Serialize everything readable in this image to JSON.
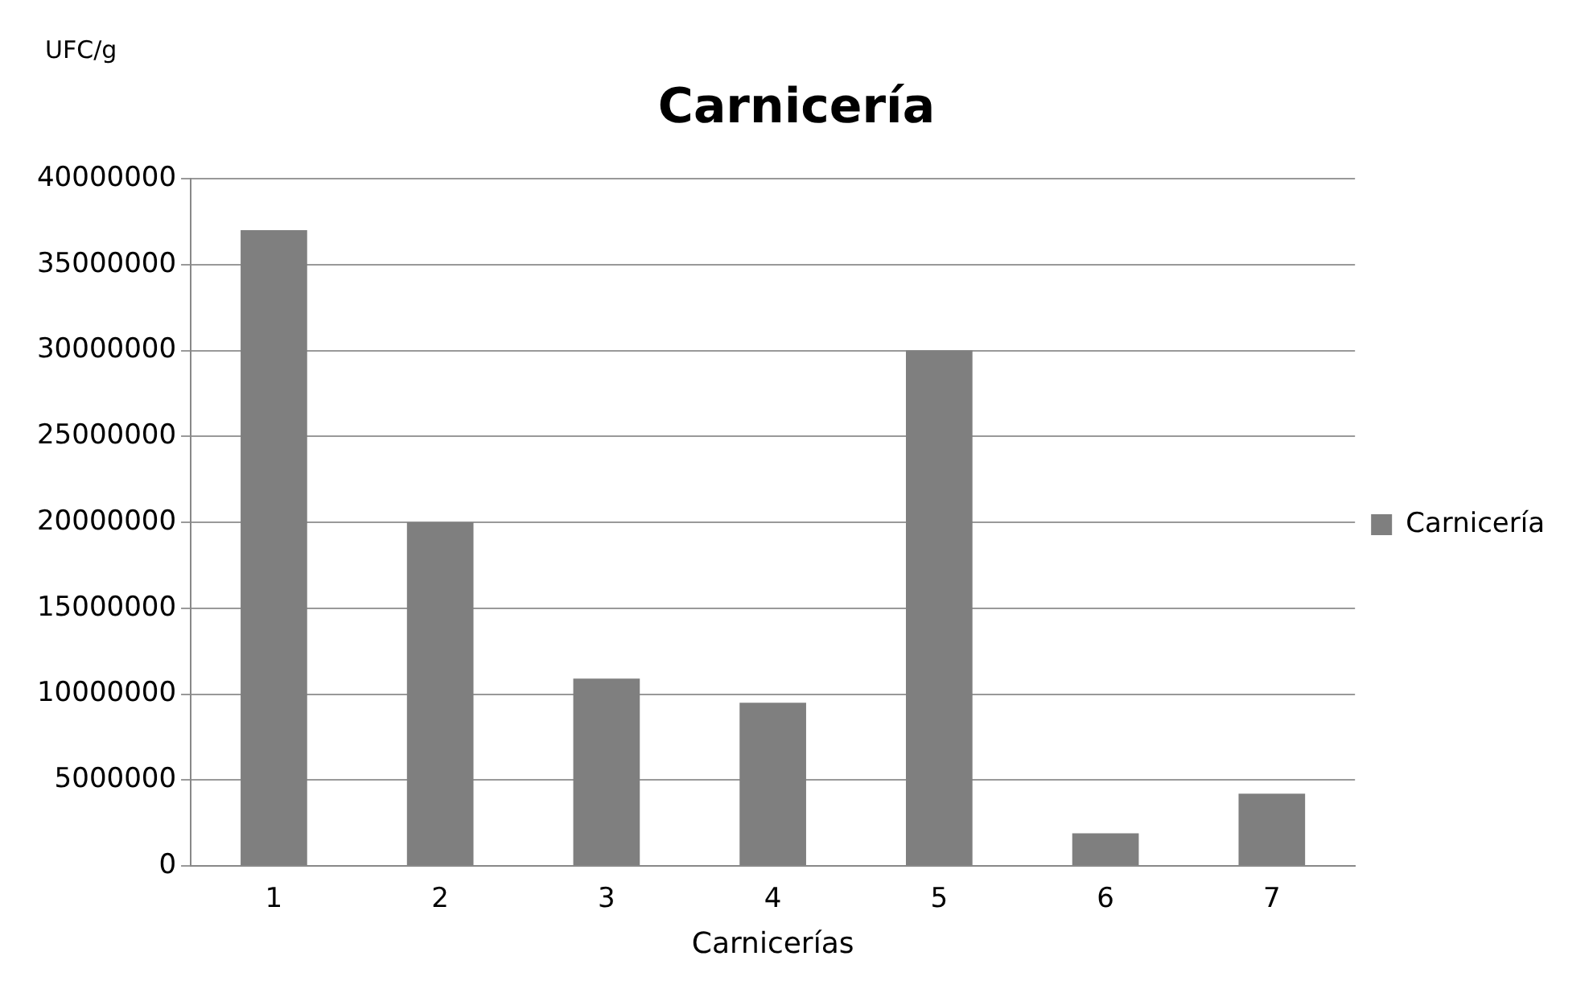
{
  "chart_data": {
    "type": "bar",
    "title": "Carnicería",
    "ylabel": "UFC/g",
    "xlabel": "Carnicerías",
    "categories": [
      "1",
      "2",
      "3",
      "4",
      "5",
      "6",
      "7"
    ],
    "series": [
      {
        "name": "Carnicería",
        "color": "#7f7f7f",
        "values": [
          37000000,
          20000000,
          10900000,
          9500000,
          30000000,
          1900000,
          4200000
        ]
      }
    ],
    "ylim": [
      0,
      40000000
    ],
    "yticks": [
      0,
      5000000,
      10000000,
      15000000,
      20000000,
      25000000,
      30000000,
      35000000,
      40000000
    ],
    "grid": "y",
    "legend": "right"
  }
}
